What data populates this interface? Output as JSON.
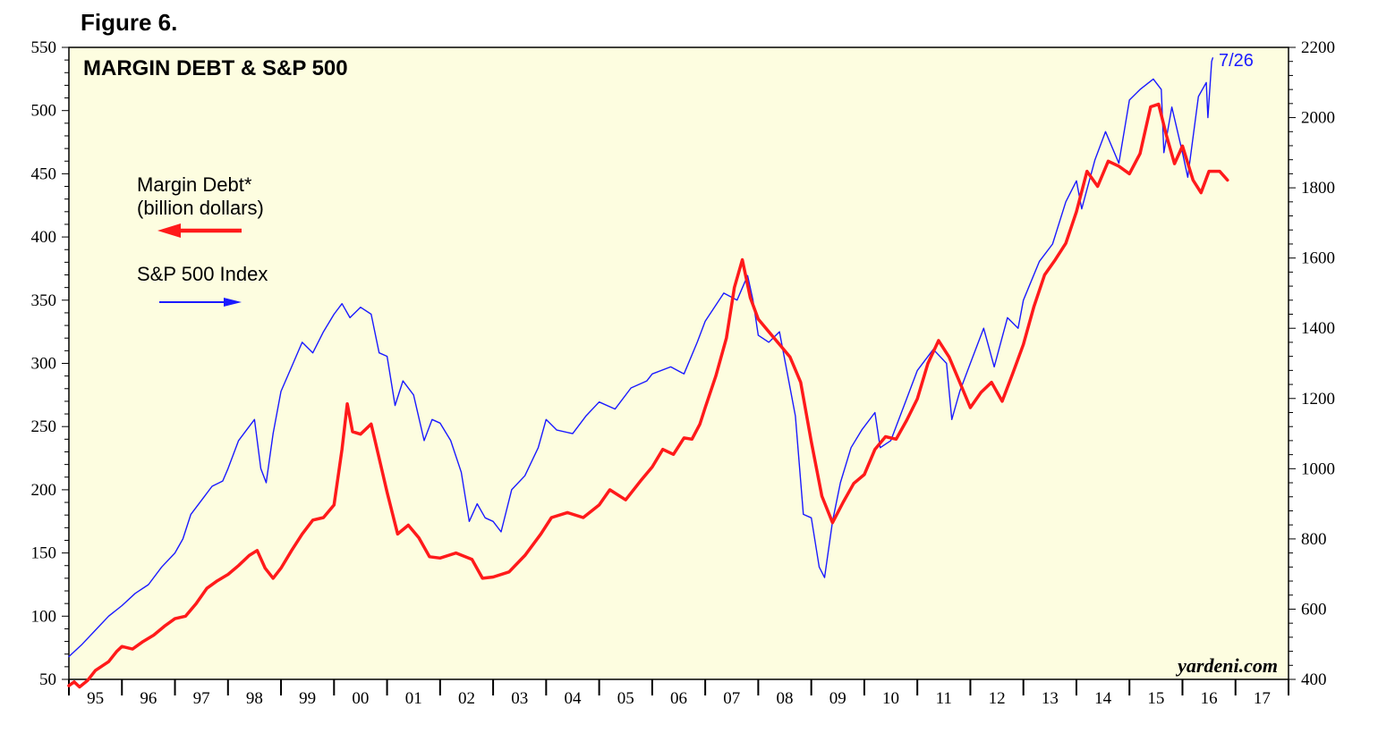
{
  "figure_label": "Figure 6.",
  "chart_data": {
    "type": "line",
    "title": "MARGIN DEBT & S&P 500",
    "watermark": "yardeni.com",
    "end_label": "7/26",
    "x_range": [
      1995.0,
      2018.0
    ],
    "x_ticks": [
      {
        "label": "95",
        "x": 1995
      },
      {
        "label": "96",
        "x": 1996
      },
      {
        "label": "97",
        "x": 1997
      },
      {
        "label": "98",
        "x": 1998
      },
      {
        "label": "99",
        "x": 1999
      },
      {
        "label": "00",
        "x": 2000
      },
      {
        "label": "01",
        "x": 2001
      },
      {
        "label": "02",
        "x": 2002
      },
      {
        "label": "03",
        "x": 2003
      },
      {
        "label": "04",
        "x": 2004
      },
      {
        "label": "05",
        "x": 2005
      },
      {
        "label": "06",
        "x": 2006
      },
      {
        "label": "07",
        "x": 2007
      },
      {
        "label": "08",
        "x": 2008
      },
      {
        "label": "09",
        "x": 2009
      },
      {
        "label": "10",
        "x": 2010
      },
      {
        "label": "11",
        "x": 2011
      },
      {
        "label": "12",
        "x": 2012
      },
      {
        "label": "13",
        "x": 2013
      },
      {
        "label": "14",
        "x": 2014
      },
      {
        "label": "15",
        "x": 2015
      },
      {
        "label": "16",
        "x": 2016
      },
      {
        "label": "17",
        "x": 2017
      }
    ],
    "y_left": {
      "range": [
        50,
        550
      ],
      "ticks": [
        "50",
        "100",
        "150",
        "200",
        "250",
        "300",
        "350",
        "400",
        "450",
        "500",
        "550"
      ]
    },
    "y_right": {
      "range": [
        400,
        2200
      ],
      "ticks": [
        "400",
        "600",
        "800",
        "1000",
        "1200",
        "1400",
        "1600",
        "1800",
        "2000",
        "2200"
      ]
    },
    "series": [
      {
        "name": "Margin Debt*",
        "sublabel": "(billion dollars)",
        "axis": "left",
        "color": "#ff1a1a",
        "points": [
          [
            1995.0,
            45
          ],
          [
            1995.1,
            48
          ],
          [
            1995.2,
            44
          ],
          [
            1995.35,
            49
          ],
          [
            1995.5,
            57
          ],
          [
            1995.75,
            64
          ],
          [
            1995.9,
            72
          ],
          [
            1996.0,
            76
          ],
          [
            1996.2,
            74
          ],
          [
            1996.4,
            80
          ],
          [
            1996.6,
            85
          ],
          [
            1996.8,
            92
          ],
          [
            1997.0,
            98
          ],
          [
            1997.2,
            100
          ],
          [
            1997.4,
            110
          ],
          [
            1997.6,
            122
          ],
          [
            1997.8,
            128
          ],
          [
            1998.0,
            133
          ],
          [
            1998.2,
            140
          ],
          [
            1998.4,
            148
          ],
          [
            1998.55,
            152
          ],
          [
            1998.7,
            138
          ],
          [
            1998.85,
            130
          ],
          [
            1999.0,
            138
          ],
          [
            1999.2,
            152
          ],
          [
            1999.4,
            165
          ],
          [
            1999.6,
            176
          ],
          [
            1999.8,
            178
          ],
          [
            2000.0,
            188
          ],
          [
            2000.15,
            232
          ],
          [
            2000.25,
            268
          ],
          [
            2000.35,
            246
          ],
          [
            2000.5,
            244
          ],
          [
            2000.7,
            252
          ],
          [
            2000.85,
            225
          ],
          [
            2001.0,
            198
          ],
          [
            2001.2,
            165
          ],
          [
            2001.4,
            172
          ],
          [
            2001.6,
            162
          ],
          [
            2001.8,
            147
          ],
          [
            2002.0,
            146
          ],
          [
            2002.3,
            150
          ],
          [
            2002.6,
            145
          ],
          [
            2002.8,
            130
          ],
          [
            2003.0,
            131
          ],
          [
            2003.3,
            135
          ],
          [
            2003.6,
            148
          ],
          [
            2003.9,
            165
          ],
          [
            2004.1,
            178
          ],
          [
            2004.4,
            182
          ],
          [
            2004.7,
            178
          ],
          [
            2005.0,
            188
          ],
          [
            2005.2,
            200
          ],
          [
            2005.5,
            192
          ],
          [
            2005.8,
            208
          ],
          [
            2006.0,
            218
          ],
          [
            2006.2,
            232
          ],
          [
            2006.4,
            228
          ],
          [
            2006.6,
            241
          ],
          [
            2006.75,
            240
          ],
          [
            2006.9,
            252
          ],
          [
            2007.0,
            265
          ],
          [
            2007.2,
            290
          ],
          [
            2007.4,
            320
          ],
          [
            2007.55,
            360
          ],
          [
            2007.7,
            382
          ],
          [
            2007.85,
            352
          ],
          [
            2008.0,
            335
          ],
          [
            2008.2,
            325
          ],
          [
            2008.4,
            315
          ],
          [
            2008.6,
            305
          ],
          [
            2008.8,
            285
          ],
          [
            2009.0,
            238
          ],
          [
            2009.2,
            195
          ],
          [
            2009.4,
            174
          ],
          [
            2009.6,
            190
          ],
          [
            2009.8,
            205
          ],
          [
            2010.0,
            212
          ],
          [
            2010.2,
            232
          ],
          [
            2010.4,
            242
          ],
          [
            2010.6,
            240
          ],
          [
            2010.8,
            255
          ],
          [
            2011.0,
            272
          ],
          [
            2011.2,
            300
          ],
          [
            2011.4,
            318
          ],
          [
            2011.6,
            305
          ],
          [
            2011.8,
            285
          ],
          [
            2012.0,
            265
          ],
          [
            2012.2,
            277
          ],
          [
            2012.4,
            285
          ],
          [
            2012.6,
            270
          ],
          [
            2012.8,
            292
          ],
          [
            2013.0,
            315
          ],
          [
            2013.2,
            345
          ],
          [
            2013.4,
            370
          ],
          [
            2013.6,
            382
          ],
          [
            2013.8,
            395
          ],
          [
            2014.0,
            420
          ],
          [
            2014.2,
            452
          ],
          [
            2014.4,
            440
          ],
          [
            2014.6,
            460
          ],
          [
            2014.8,
            456
          ],
          [
            2015.0,
            450
          ],
          [
            2015.2,
            466
          ],
          [
            2015.4,
            503
          ],
          [
            2015.55,
            505
          ],
          [
            2015.7,
            480
          ],
          [
            2015.85,
            458
          ],
          [
            2016.0,
            472
          ],
          [
            2016.2,
            445
          ],
          [
            2016.35,
            435
          ],
          [
            2016.5,
            452
          ],
          [
            2016.7,
            452
          ],
          [
            2016.85,
            445
          ]
        ]
      },
      {
        "name": "S&P 500 Index",
        "axis": "right",
        "color": "#1a1aff",
        "points": [
          [
            1995.0,
            465
          ],
          [
            1995.25,
            500
          ],
          [
            1995.5,
            540
          ],
          [
            1995.75,
            580
          ],
          [
            1996.0,
            610
          ],
          [
            1996.25,
            645
          ],
          [
            1996.5,
            670
          ],
          [
            1996.75,
            720
          ],
          [
            1997.0,
            760
          ],
          [
            1997.15,
            800
          ],
          [
            1997.3,
            870
          ],
          [
            1997.5,
            910
          ],
          [
            1997.7,
            950
          ],
          [
            1997.9,
            965
          ],
          [
            1998.0,
            1000
          ],
          [
            1998.2,
            1080
          ],
          [
            1998.35,
            1110
          ],
          [
            1998.5,
            1140
          ],
          [
            1998.62,
            1000
          ],
          [
            1998.72,
            960
          ],
          [
            1998.85,
            1100
          ],
          [
            1999.0,
            1220
          ],
          [
            1999.2,
            1290
          ],
          [
            1999.4,
            1360
          ],
          [
            1999.6,
            1330
          ],
          [
            1999.8,
            1390
          ],
          [
            2000.0,
            1440
          ],
          [
            2000.15,
            1470
          ],
          [
            2000.3,
            1430
          ],
          [
            2000.5,
            1460
          ],
          [
            2000.7,
            1440
          ],
          [
            2000.85,
            1330
          ],
          [
            2001.0,
            1320
          ],
          [
            2001.15,
            1180
          ],
          [
            2001.3,
            1250
          ],
          [
            2001.5,
            1210
          ],
          [
            2001.7,
            1080
          ],
          [
            2001.85,
            1140
          ],
          [
            2002.0,
            1130
          ],
          [
            2002.2,
            1080
          ],
          [
            2002.4,
            990
          ],
          [
            2002.55,
            850
          ],
          [
            2002.7,
            900
          ],
          [
            2002.85,
            860
          ],
          [
            2003.0,
            850
          ],
          [
            2003.15,
            820
          ],
          [
            2003.35,
            940
          ],
          [
            2003.6,
            980
          ],
          [
            2003.85,
            1060
          ],
          [
            2004.0,
            1140
          ],
          [
            2004.2,
            1110
          ],
          [
            2004.5,
            1100
          ],
          [
            2004.75,
            1150
          ],
          [
            2005.0,
            1190
          ],
          [
            2005.3,
            1170
          ],
          [
            2005.6,
            1230
          ],
          [
            2005.9,
            1250
          ],
          [
            2006.0,
            1270
          ],
          [
            2006.35,
            1290
          ],
          [
            2006.6,
            1270
          ],
          [
            2006.85,
            1360
          ],
          [
            2007.0,
            1420
          ],
          [
            2007.35,
            1500
          ],
          [
            2007.6,
            1480
          ],
          [
            2007.8,
            1550
          ],
          [
            2007.9,
            1480
          ],
          [
            2008.0,
            1380
          ],
          [
            2008.2,
            1360
          ],
          [
            2008.4,
            1390
          ],
          [
            2008.55,
            1270
          ],
          [
            2008.7,
            1150
          ],
          [
            2008.85,
            870
          ],
          [
            2009.0,
            860
          ],
          [
            2009.15,
            720
          ],
          [
            2009.25,
            690
          ],
          [
            2009.4,
            850
          ],
          [
            2009.55,
            960
          ],
          [
            2009.75,
            1060
          ],
          [
            2009.95,
            1110
          ],
          [
            2010.2,
            1160
          ],
          [
            2010.3,
            1060
          ],
          [
            2010.5,
            1080
          ],
          [
            2010.75,
            1180
          ],
          [
            2011.0,
            1280
          ],
          [
            2011.3,
            1340
          ],
          [
            2011.55,
            1300
          ],
          [
            2011.65,
            1140
          ],
          [
            2011.8,
            1220
          ],
          [
            2012.0,
            1300
          ],
          [
            2012.25,
            1400
          ],
          [
            2012.45,
            1290
          ],
          [
            2012.7,
            1430
          ],
          [
            2012.9,
            1400
          ],
          [
            2013.0,
            1480
          ],
          [
            2013.3,
            1590
          ],
          [
            2013.55,
            1640
          ],
          [
            2013.8,
            1760
          ],
          [
            2014.0,
            1820
          ],
          [
            2014.1,
            1740
          ],
          [
            2014.35,
            1880
          ],
          [
            2014.55,
            1960
          ],
          [
            2014.8,
            1870
          ],
          [
            2015.0,
            2050
          ],
          [
            2015.2,
            2080
          ],
          [
            2015.45,
            2110
          ],
          [
            2015.6,
            2080
          ],
          [
            2015.65,
            1900
          ],
          [
            2015.8,
            2030
          ],
          [
            2016.0,
            1900
          ],
          [
            2016.1,
            1830
          ],
          [
            2016.3,
            2060
          ],
          [
            2016.45,
            2100
          ],
          [
            2016.48,
            2000
          ],
          [
            2016.55,
            2160
          ],
          [
            2016.57,
            2170
          ]
        ]
      }
    ]
  }
}
